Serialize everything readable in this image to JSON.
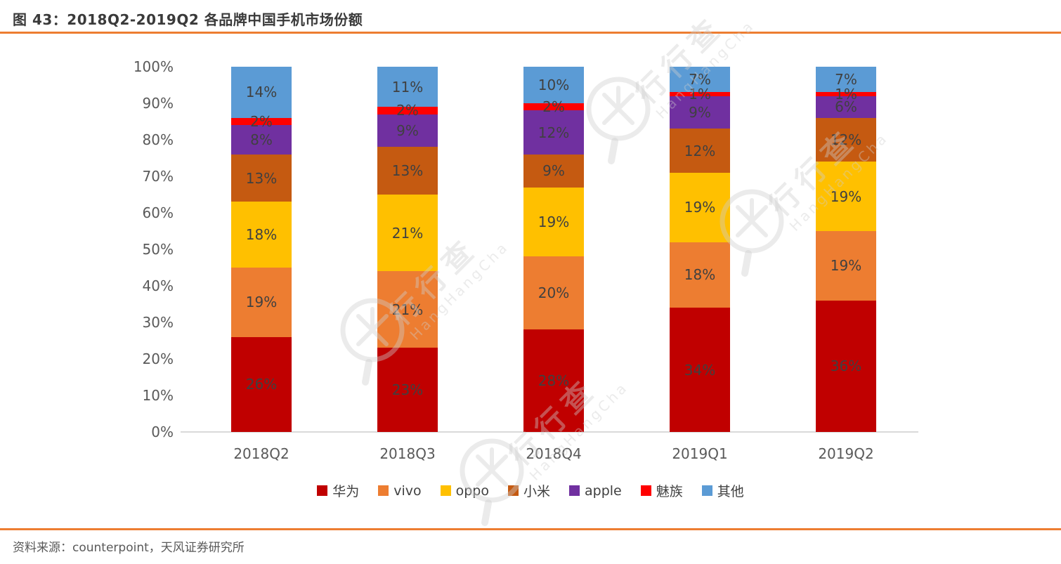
{
  "header": {
    "title": "图 43：2018Q2-2019Q2 各品牌中国手机市场份额"
  },
  "footer": {
    "source": "资料来源：counterpoint，天风证券研究所"
  },
  "watermark": {
    "cn": "行行查",
    "en": "HangHangCha"
  },
  "theme": {
    "accent_rule_color": "#ED7D31",
    "axis_line_color": "#D9D9D9",
    "tick_label_color": "#595959",
    "data_label_color": "#404040"
  },
  "chart_data": {
    "type": "bar",
    "stacked": true,
    "grid": false,
    "legend_position": "bottom",
    "categories": [
      "2018Q2",
      "2018Q3",
      "2018Q4",
      "2019Q1",
      "2019Q2"
    ],
    "series": [
      {
        "name": "华为",
        "color": "#C00000",
        "values": [
          26,
          23,
          28,
          34,
          36
        ]
      },
      {
        "name": "vivo",
        "color": "#ED7D31",
        "values": [
          19,
          21,
          20,
          18,
          19
        ]
      },
      {
        "name": "oppo",
        "color": "#FFC000",
        "values": [
          18,
          21,
          19,
          19,
          19
        ]
      },
      {
        "name": "小米",
        "color": "#C55A11",
        "values": [
          13,
          13,
          9,
          12,
          12
        ]
      },
      {
        "name": "apple",
        "color": "#7030A0",
        "values": [
          8,
          9,
          12,
          9,
          6
        ]
      },
      {
        "name": "魅族",
        "color": "#FF0000",
        "values": [
          2,
          2,
          2,
          1,
          1
        ]
      },
      {
        "name": "其他",
        "color": "#5B9BD5",
        "values": [
          14,
          11,
          10,
          7,
          7
        ]
      }
    ],
    "value_suffix": "%",
    "y_ticks": [
      "100%",
      "90%",
      "80%",
      "70%",
      "60%",
      "50%",
      "40%",
      "30%",
      "20%",
      "10%",
      "0%"
    ],
    "ylim": [
      0,
      100
    ]
  }
}
